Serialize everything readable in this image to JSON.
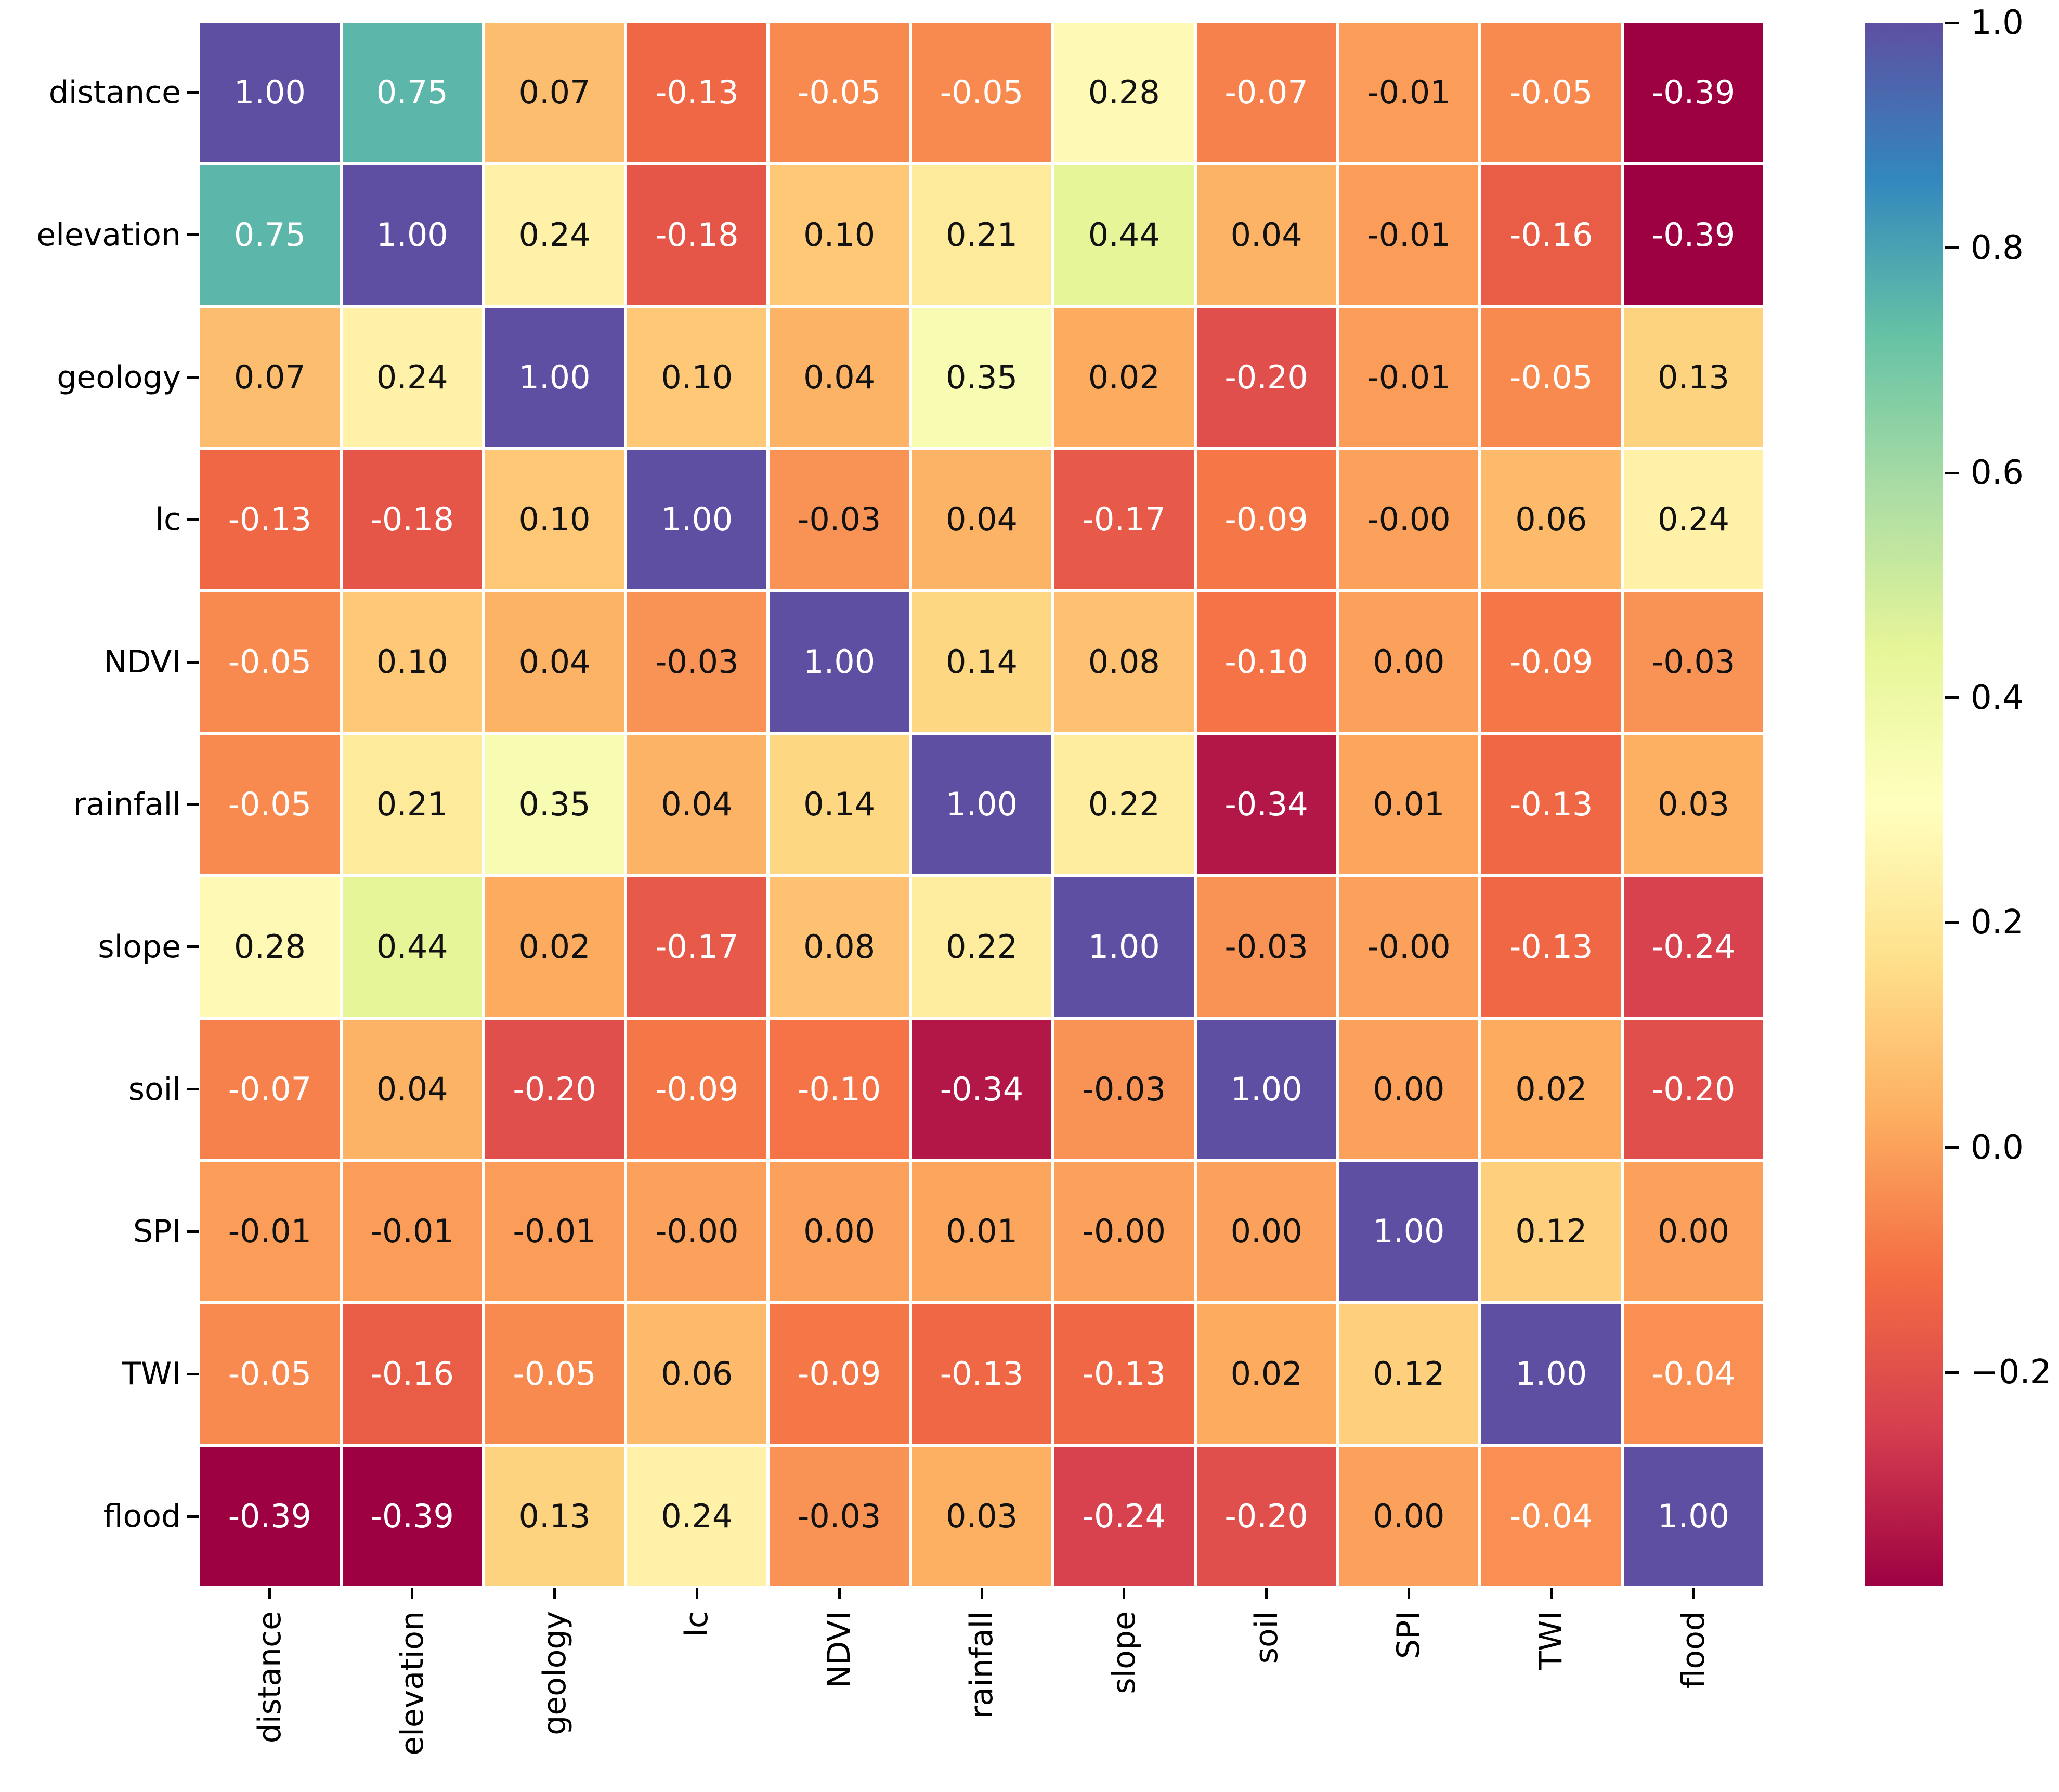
{
  "chart_data": {
    "type": "heatmap",
    "title": "",
    "xlabel": "",
    "ylabel": "",
    "categories": [
      "distance",
      "elevation",
      "geology",
      "lc",
      "NDVI",
      "rainfall",
      "slope",
      "soil",
      "SPI",
      "TWI",
      "flood"
    ],
    "annotations": [
      [
        "1.00",
        "0.75",
        "0.07",
        "-0.13",
        "-0.05",
        "-0.05",
        "0.28",
        "-0.07",
        "-0.01",
        "-0.05",
        "-0.39"
      ],
      [
        "0.75",
        "1.00",
        "0.24",
        "-0.18",
        "0.10",
        "0.21",
        "0.44",
        "0.04",
        "-0.01",
        "-0.16",
        "-0.39"
      ],
      [
        "0.07",
        "0.24",
        "1.00",
        "0.10",
        "0.04",
        "0.35",
        "0.02",
        "-0.20",
        "-0.01",
        "-0.05",
        "0.13"
      ],
      [
        "-0.13",
        "-0.18",
        "0.10",
        "1.00",
        "-0.03",
        "0.04",
        "-0.17",
        "-0.09",
        "-0.00",
        "0.06",
        "0.24"
      ],
      [
        "-0.05",
        "0.10",
        "0.04",
        "-0.03",
        "1.00",
        "0.14",
        "0.08",
        "-0.10",
        "0.00",
        "-0.09",
        "-0.03"
      ],
      [
        "-0.05",
        "0.21",
        "0.35",
        "0.04",
        "0.14",
        "1.00",
        "0.22",
        "-0.34",
        "0.01",
        "-0.13",
        "0.03"
      ],
      [
        "0.28",
        "0.44",
        "0.02",
        "-0.17",
        "0.08",
        "0.22",
        "1.00",
        "-0.03",
        "-0.00",
        "-0.13",
        "-0.24"
      ],
      [
        "-0.07",
        "0.04",
        "-0.20",
        "-0.09",
        "-0.10",
        "-0.34",
        "-0.03",
        "1.00",
        "0.00",
        "0.02",
        "-0.20"
      ],
      [
        "-0.01",
        "-0.01",
        "-0.01",
        "-0.00",
        "0.00",
        "0.01",
        "-0.00",
        "0.00",
        "1.00",
        "0.12",
        "0.00"
      ],
      [
        "-0.05",
        "-0.16",
        "-0.05",
        "0.06",
        "-0.09",
        "-0.13",
        "-0.13",
        "0.02",
        "0.12",
        "1.00",
        "-0.04"
      ],
      [
        "-0.39",
        "-0.39",
        "0.13",
        "0.24",
        "-0.03",
        "0.03",
        "-0.24",
        "-0.20",
        "0.00",
        "-0.04",
        "1.00"
      ]
    ],
    "colormap": {
      "name": "Spectral",
      "stops": [
        "#9e0142",
        "#d53e4f",
        "#f46d43",
        "#fdae61",
        "#fee08b",
        "#ffffbf",
        "#e6f598",
        "#abdda4",
        "#66c2a5",
        "#3288bd",
        "#5e4fa2"
      ],
      "vmin": -0.39,
      "vmax": 1.0
    },
    "colorbar": {
      "position": "right",
      "ticks": [
        {
          "value": 1.0,
          "label": "1.0"
        },
        {
          "value": 0.8,
          "label": "0.8"
        },
        {
          "value": 0.6,
          "label": "0.6"
        },
        {
          "value": 0.4,
          "label": "0.4"
        },
        {
          "value": 0.2,
          "label": "0.2"
        },
        {
          "value": 0.0,
          "label": "0.0"
        },
        {
          "value": -0.2,
          "label": "−0.2"
        }
      ]
    },
    "grid_line_color": "#ffffff",
    "background": "#ffffff",
    "annotation_text_dark": "#121212",
    "annotation_text_light": "#ffffff",
    "luminance_threshold": 0.408,
    "legend_position": "right-colorbar"
  }
}
